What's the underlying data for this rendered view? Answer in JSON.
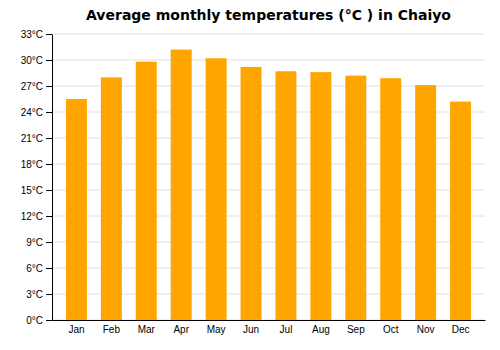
{
  "chart_data": {
    "type": "bar",
    "title": "Average monthly temperatures (°C ) in Chaiyo",
    "categories": [
      "Jan",
      "Feb",
      "Mar",
      "Apr",
      "May",
      "Jun",
      "Jul",
      "Aug",
      "Sep",
      "Oct",
      "Nov",
      "Dec"
    ],
    "values": [
      25.5,
      28.0,
      29.8,
      31.2,
      30.2,
      29.2,
      28.7,
      28.6,
      28.2,
      27.9,
      27.1,
      25.2
    ],
    "color": "#FFA500",
    "ylim": [
      0,
      33
    ],
    "yticks": [
      {
        "value": 0,
        "label": "0°C"
      },
      {
        "value": 3,
        "label": "3°C"
      },
      {
        "value": 6,
        "label": "6°C"
      },
      {
        "value": 9,
        "label": "9°C"
      },
      {
        "value": 12,
        "label": "12°C"
      },
      {
        "value": 15,
        "label": "15°C"
      },
      {
        "value": 18,
        "label": "18°C"
      },
      {
        "value": 21,
        "label": "21°C"
      },
      {
        "value": 24,
        "label": "24°C"
      },
      {
        "value": 27,
        "label": "27°C"
      },
      {
        "value": 30,
        "label": "30°C"
      },
      {
        "value": 33,
        "label": "33°C"
      }
    ],
    "grid": true
  }
}
